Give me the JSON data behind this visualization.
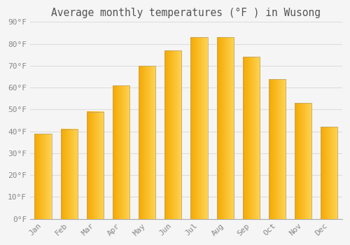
{
  "title": "Average monthly temperatures (°F ) in Wusong",
  "months": [
    "Jan",
    "Feb",
    "Mar",
    "Apr",
    "May",
    "Jun",
    "Jul",
    "Aug",
    "Sep",
    "Oct",
    "Nov",
    "Dec"
  ],
  "values": [
    39,
    41,
    49,
    61,
    70,
    77,
    83,
    83,
    74,
    64,
    53,
    42
  ],
  "bar_color_left": "#F5A800",
  "bar_color_right": "#FFD555",
  "bar_edge_color": "#B8A070",
  "background_color": "#F5F5F5",
  "grid_color": "#DDDDDD",
  "text_color": "#888888",
  "ylim": [
    0,
    90
  ],
  "yticks": [
    0,
    10,
    20,
    30,
    40,
    50,
    60,
    70,
    80,
    90
  ],
  "title_fontsize": 10.5,
  "tick_fontsize": 8
}
